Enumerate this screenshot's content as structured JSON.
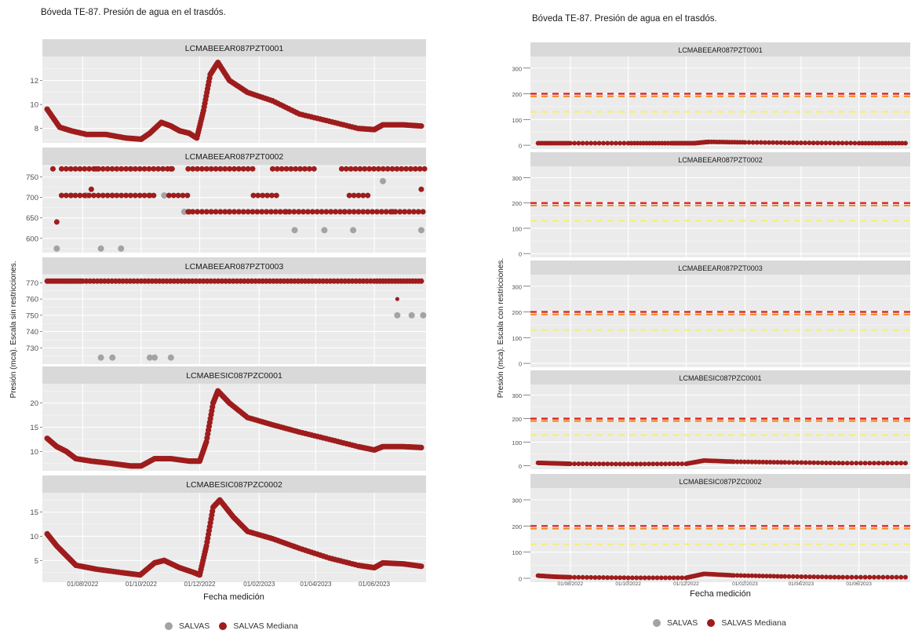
{
  "legend": {
    "salvas": "SALVAS",
    "mediana": "SALVAS Mediana"
  },
  "colors": {
    "salvas": "#a3a3a3",
    "mediana": "#9e1c1c",
    "panel_bg": "#ebebeb",
    "strip_bg": "#d9d9d9",
    "grid": "#ffffff",
    "threshold_red": "#e01b1b",
    "threshold_orange": "#f08a2c",
    "threshold_yellow": "#f3f07a"
  },
  "chart_data": [
    {
      "type": "scatter",
      "title": "Bóveda TE-87. Presión de agua en el trasdós.",
      "xlabel": "Fecha medición",
      "ylabel": "Presión (mca). Escala sin restricciones.",
      "x_ticks": [
        "01/08/2022",
        "01/10/2022",
        "01/12/2022",
        "01/02/2023",
        "01/04/2023",
        "01/06/2023"
      ],
      "x_range": [
        "2022-06-20",
        "2023-07-25"
      ],
      "panels": [
        {
          "name": "LCMABEEAR087PZT0001",
          "ylim": [
            6.8,
            14
          ],
          "y_ticks": [
            8,
            10,
            12
          ],
          "mediana": [
            [
              "2022-06-25",
              9.6
            ],
            [
              "2022-07-08",
              8.1
            ],
            [
              "2022-07-20",
              7.8
            ],
            [
              "2022-08-05",
              7.5
            ],
            [
              "2022-08-25",
              7.5
            ],
            [
              "2022-09-15",
              7.2
            ],
            [
              "2022-10-01",
              7.1
            ],
            [
              "2022-10-10",
              7.6
            ],
            [
              "2022-10-22",
              8.5
            ],
            [
              "2022-11-01",
              8.2
            ],
            [
              "2022-11-10",
              7.8
            ],
            [
              "2022-11-20",
              7.6
            ],
            [
              "2022-11-28",
              7.2
            ],
            [
              "2022-12-05",
              9.5
            ],
            [
              "2022-12-12",
              12.5
            ],
            [
              "2022-12-20",
              13.5
            ],
            [
              "2023-01-01",
              12.0
            ],
            [
              "2023-01-20",
              11.0
            ],
            [
              "2023-02-15",
              10.3
            ],
            [
              "2023-03-15",
              9.2
            ],
            [
              "2023-04-15",
              8.6
            ],
            [
              "2023-05-15",
              8.0
            ],
            [
              "2023-06-01",
              7.9
            ],
            [
              "2023-06-10",
              8.3
            ],
            [
              "2023-07-01",
              8.3
            ],
            [
              "2023-07-20",
              8.2
            ]
          ],
          "salvas": []
        },
        {
          "name": "LCMABEEAR087PZT0002",
          "ylim": [
            565,
            780
          ],
          "y_ticks": [
            600,
            650,
            700,
            750
          ],
          "mediana_levels": [
            770,
            705,
            665
          ],
          "notes": "Lecturas discretas en niveles ~575, 620, 665, 705 y 770 mca",
          "mediana": [
            [
              "2022-07-01",
              770
            ],
            [
              "2022-07-20",
              705
            ],
            [
              "2022-08-15",
              770
            ],
            [
              "2022-09-01",
              705
            ],
            [
              "2022-09-20",
              770
            ],
            [
              "2022-10-10",
              705
            ],
            [
              "2022-11-01",
              770
            ],
            [
              "2022-11-20",
              665
            ],
            [
              "2023-01-01",
              665
            ],
            [
              "2023-03-01",
              665
            ],
            [
              "2023-05-01",
              665
            ],
            [
              "2023-06-20",
              665
            ],
            [
              "2022-07-05",
              640
            ],
            [
              "2022-08-10",
              720
            ],
            [
              "2023-07-20",
              720
            ]
          ],
          "salvas": [
            [
              "2022-07-05",
              575
            ],
            [
              "2022-08-20",
              575
            ],
            [
              "2022-09-10",
              575
            ],
            [
              "2022-08-05",
              705
            ],
            [
              "2022-10-25",
              705
            ],
            [
              "2022-11-15",
              665
            ],
            [
              "2023-03-10",
              620
            ],
            [
              "2023-04-10",
              620
            ],
            [
              "2023-05-10",
              620
            ],
            [
              "2023-06-10",
              740
            ],
            [
              "2023-07-20",
              620
            ]
          ]
        },
        {
          "name": "LCMABEEAR087PZT0003",
          "ylim": [
            720,
            775
          ],
          "y_ticks": [
            730,
            740,
            750,
            760,
            770
          ],
          "mediana": [
            [
              "2022-06-25",
              771
            ],
            [
              "2022-08-01",
              771
            ],
            [
              "2022-10-01",
              771
            ],
            [
              "2022-12-01",
              771
            ],
            [
              "2023-02-01",
              771
            ],
            [
              "2023-04-01",
              771
            ],
            [
              "2023-06-01",
              771
            ],
            [
              "2023-07-20",
              771
            ],
            [
              "2023-06-25",
              760
            ]
          ],
          "salvas": [
            [
              "2022-08-20",
              724
            ],
            [
              "2022-09-01",
              724
            ],
            [
              "2022-10-10",
              724
            ],
            [
              "2022-10-15",
              724
            ],
            [
              "2022-11-01",
              724
            ],
            [
              "2023-06-25",
              750
            ],
            [
              "2023-07-10",
              750
            ],
            [
              "2023-07-22",
              750
            ]
          ]
        },
        {
          "name": "LCMABESIC087PZC0001",
          "ylim": [
            6,
            24
          ],
          "y_ticks": [
            10,
            15,
            20
          ],
          "mediana": [
            [
              "2022-06-25",
              12.7
            ],
            [
              "2022-07-05",
              11.0
            ],
            [
              "2022-07-15",
              10.0
            ],
            [
              "2022-07-25",
              8.5
            ],
            [
              "2022-08-10",
              8.0
            ],
            [
              "2022-09-01",
              7.5
            ],
            [
              "2022-09-20",
              7.0
            ],
            [
              "2022-10-01",
              7.0
            ],
            [
              "2022-10-15",
              8.5
            ],
            [
              "2022-11-01",
              8.5
            ],
            [
              "2022-11-20",
              8.0
            ],
            [
              "2022-12-01",
              8.0
            ],
            [
              "2022-12-08",
              12.0
            ],
            [
              "2022-12-15",
              20.0
            ],
            [
              "2022-12-20",
              22.5
            ],
            [
              "2023-01-01",
              20.0
            ],
            [
              "2023-01-20",
              17.0
            ],
            [
              "2023-02-15",
              15.5
            ],
            [
              "2023-03-15",
              14.0
            ],
            [
              "2023-04-15",
              12.5
            ],
            [
              "2023-05-15",
              11.0
            ],
            [
              "2023-06-01",
              10.3
            ],
            [
              "2023-06-10",
              11.0
            ],
            [
              "2023-07-01",
              11.0
            ],
            [
              "2023-07-20",
              10.8
            ]
          ],
          "salvas": []
        },
        {
          "name": "LCMABESIC087PZC0002",
          "ylim": [
            0.5,
            19
          ],
          "y_ticks": [
            5,
            10,
            15
          ],
          "mediana": [
            [
              "2022-06-25",
              10.5
            ],
            [
              "2022-07-05",
              8.0
            ],
            [
              "2022-07-15",
              6.0
            ],
            [
              "2022-07-25",
              4.0
            ],
            [
              "2022-08-15",
              3.2
            ],
            [
              "2022-09-10",
              2.5
            ],
            [
              "2022-09-30",
              2.0
            ],
            [
              "2022-10-15",
              4.5
            ],
            [
              "2022-10-25",
              5.0
            ],
            [
              "2022-11-10",
              3.5
            ],
            [
              "2022-11-25",
              2.5
            ],
            [
              "2022-12-01",
              2.0
            ],
            [
              "2022-12-08",
              8.0
            ],
            [
              "2022-12-15",
              16.0
            ],
            [
              "2022-12-22",
              17.5
            ],
            [
              "2023-01-05",
              14.0
            ],
            [
              "2023-01-20",
              11.0
            ],
            [
              "2023-02-15",
              9.5
            ],
            [
              "2023-03-15",
              7.5
            ],
            [
              "2023-04-15",
              5.5
            ],
            [
              "2023-05-15",
              4.0
            ],
            [
              "2023-06-01",
              3.5
            ],
            [
              "2023-06-10",
              4.5
            ],
            [
              "2023-07-01",
              4.3
            ],
            [
              "2023-07-20",
              3.8
            ]
          ],
          "salvas": []
        }
      ]
    },
    {
      "type": "scatter",
      "title": "Bóveda TE-87. Presión de agua en el trasdós.",
      "xlabel": "Fecha medición",
      "ylabel": "Presión (mca). Escala con restricciones.",
      "x_ticks": [
        "01/08/2022",
        "01/10/2022",
        "01/12/2022",
        "01/02/2023",
        "01/04/2023",
        "01/06/2023"
      ],
      "x_range": [
        "2022-06-20",
        "2023-07-25"
      ],
      "thresholds": [
        200,
        190,
        130
      ],
      "panels": [
        {
          "name": "LCMABEEAR087PZT0001",
          "ylim": [
            -15,
            345
          ],
          "y_ticks": [
            0,
            100,
            200,
            300
          ],
          "mediana": [
            [
              "2022-06-28",
              8
            ],
            [
              "2022-08-01",
              8
            ],
            [
              "2022-10-01",
              8
            ],
            [
              "2022-11-15",
              8
            ],
            [
              "2022-12-10",
              8
            ],
            [
              "2022-12-25",
              13
            ],
            [
              "2023-02-01",
              11
            ],
            [
              "2023-04-01",
              9
            ],
            [
              "2023-06-01",
              8
            ],
            [
              "2023-07-20",
              8
            ]
          ],
          "salvas": []
        },
        {
          "name": "LCMABEEAR087PZT0002",
          "ylim": [
            -15,
            345
          ],
          "y_ticks": [
            0,
            100,
            200,
            300
          ],
          "mediana": [],
          "salvas": []
        },
        {
          "name": "LCMABEEAR087PZT0003",
          "ylim": [
            -15,
            345
          ],
          "y_ticks": [
            0,
            100,
            200,
            300
          ],
          "mediana": [],
          "salvas": []
        },
        {
          "name": "LCMABESIC087PZC0001",
          "ylim": [
            -15,
            345
          ],
          "y_ticks": [
            0,
            100,
            200,
            300
          ],
          "mediana": [
            [
              "2022-06-28",
              12
            ],
            [
              "2022-07-15",
              10
            ],
            [
              "2022-08-01",
              8
            ],
            [
              "2022-10-01",
              7
            ],
            [
              "2022-12-01",
              8
            ],
            [
              "2022-12-20",
              22
            ],
            [
              "2023-01-20",
              17
            ],
            [
              "2023-03-15",
              14
            ],
            [
              "2023-05-15",
              11
            ],
            [
              "2023-07-20",
              11
            ]
          ],
          "salvas": []
        },
        {
          "name": "LCMABESIC087PZC0002",
          "ylim": [
            -15,
            345
          ],
          "y_ticks": [
            0,
            100,
            200,
            300
          ],
          "mediana": [
            [
              "2022-06-28",
              10
            ],
            [
              "2022-07-15",
              6
            ],
            [
              "2022-08-01",
              4
            ],
            [
              "2022-10-01",
              2
            ],
            [
              "2022-12-01",
              2
            ],
            [
              "2022-12-20",
              17
            ],
            [
              "2023-01-20",
              11
            ],
            [
              "2023-03-15",
              7
            ],
            [
              "2023-05-15",
              4
            ],
            [
              "2023-07-20",
              4
            ]
          ],
          "salvas": []
        }
      ]
    }
  ]
}
